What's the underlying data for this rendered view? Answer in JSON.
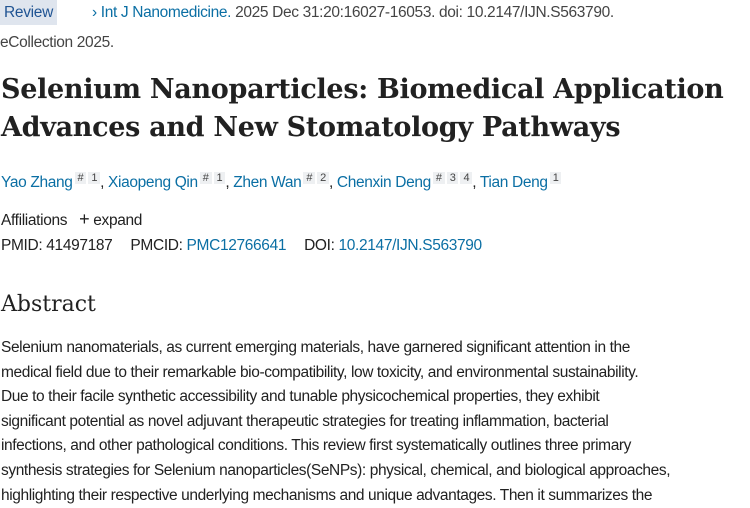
{
  "citation": {
    "badge": "Review",
    "journal": "Int J Nanomedicine.",
    "details": " 2025 Dec 31:20:16027-16053. doi: 10.2147/IJN.S563790.",
    "ecollection": "eCollection 2025."
  },
  "title": {
    "line1": "Selenium Nanoparticles: Biomedical Application",
    "line2": "Advances and New Stomatology Pathways"
  },
  "authors": [
    {
      "name": "Yao Zhang",
      "marks": [
        "#",
        "1"
      ]
    },
    {
      "name": "Xiaopeng Qin",
      "marks": [
        "#",
        "1"
      ]
    },
    {
      "name": "Zhen Wan",
      "marks": [
        "#",
        "2"
      ]
    },
    {
      "name": "Chenxin Deng",
      "marks": [
        "#",
        "3",
        "4"
      ]
    },
    {
      "name": "Tian Deng",
      "marks": [
        "1"
      ]
    }
  ],
  "affiliations": {
    "label": "Affiliations",
    "expand": "expand"
  },
  "ids": {
    "pmid_label": "PMID:",
    "pmid": "41497187",
    "pmcid_label": "PMCID:",
    "pmcid": "PMC12766641",
    "doi_label": "DOI:",
    "doi": "10.2147/IJN.S563790"
  },
  "abstract": {
    "heading": "Abstract",
    "lines": [
      "Selenium nanomaterials, as current emerging materials, have garnered significant attention in the",
      "medical field due to their remarkable bio-compatibility, low toxicity, and environmental sustainability.",
      "Due to their facile synthetic accessibility and tunable physicochemical properties, they exhibit",
      "significant potential as novel adjuvant therapeutic strategies for treating inflammation, bacterial",
      "infections, and other pathological conditions. This review first systematically outlines three primary",
      "synthesis strategies for Selenium nanoparticles(SeNPs): physical, chemical, and biological approaches,",
      "highlighting their respective underlying mechanisms and unique advantages. Then it summarizes the"
    ]
  }
}
